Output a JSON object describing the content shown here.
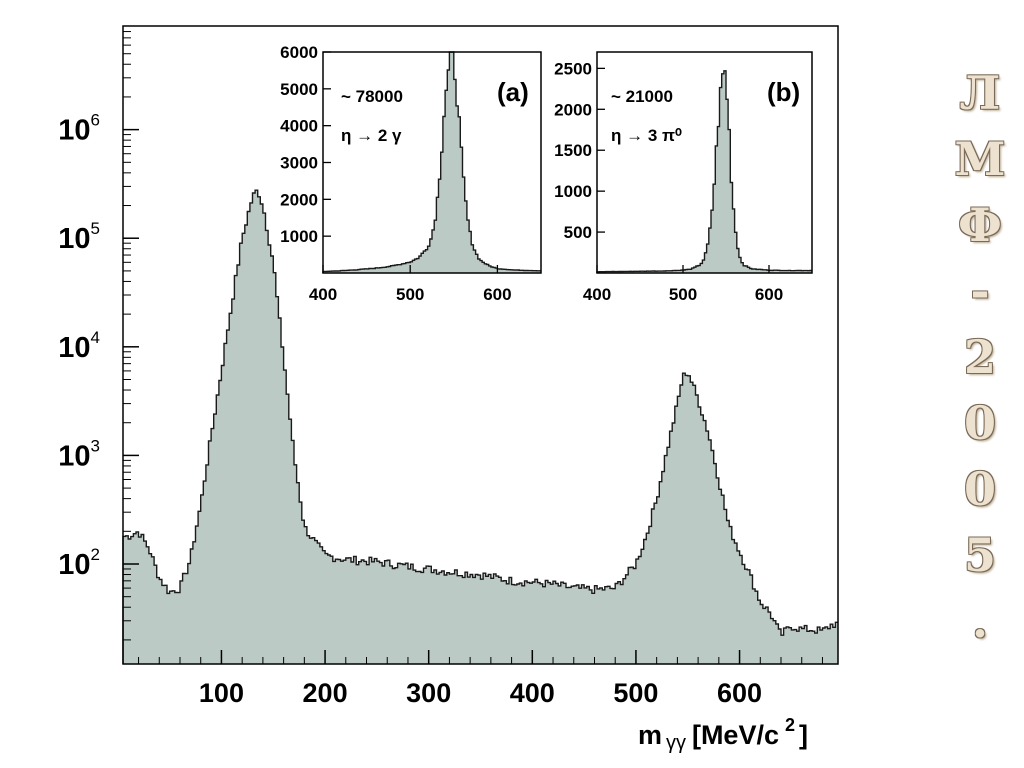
{
  "colors": {
    "fill": "#bccac6",
    "stroke": "#1a1a1a",
    "background": "#ffffff",
    "side_text": "#ede2cf"
  },
  "side_text": {
    "chars": [
      "Л",
      "М",
      "Ф",
      "-",
      "2",
      "0",
      "0",
      "5",
      "."
    ]
  },
  "chart_data": [
    {
      "type": "area",
      "title": "",
      "xlabel": "m γγ [MeV/c ²]",
      "ylabel": "",
      "y_scale": "log",
      "xlim": [
        5,
        695
      ],
      "ylim": [
        12,
        9000000
      ],
      "x_ticks": [
        100,
        200,
        300,
        400,
        500,
        600
      ],
      "y_ticks": [
        {
          "value": 100,
          "base": "10",
          "exp": "2"
        },
        {
          "value": 1000,
          "base": "10",
          "exp": "3"
        },
        {
          "value": 10000,
          "base": "10",
          "exp": "4"
        },
        {
          "value": 100000,
          "base": "10",
          "exp": "5"
        },
        {
          "value": 1000000,
          "base": "10",
          "exp": "6"
        }
      ],
      "grid": false,
      "series": [
        {
          "x": [
            10,
            20,
            30,
            40,
            50,
            60,
            70,
            80,
            90,
            100,
            110,
            120,
            130,
            135,
            140,
            150,
            160,
            170,
            180,
            190,
            200,
            220,
            250,
            280,
            300,
            320,
            350,
            380,
            400,
            420,
            440,
            460,
            480,
            500,
            510,
            520,
            530,
            540,
            545,
            550,
            560,
            570,
            580,
            590,
            600,
            610,
            620,
            630,
            640,
            650,
            660,
            670,
            680,
            690
          ],
          "values": [
            180,
            200,
            140,
            75,
            55,
            60,
            110,
            350,
            1500,
            6000,
            25000,
            100000,
            240000,
            280000,
            200000,
            60000,
            8000,
            1000,
            220,
            160,
            120,
            110,
            105,
            95,
            90,
            85,
            80,
            70,
            68,
            65,
            60,
            58,
            60,
            100,
            180,
            400,
            1100,
            3000,
            5200,
            6000,
            3300,
            1600,
            600,
            220,
            130,
            80,
            45,
            35,
            22,
            27,
            25,
            25,
            24,
            28
          ]
        }
      ]
    },
    {
      "type": "area",
      "title": "(a)",
      "annotations": [
        "~ 78000",
        "η → 2 γ"
      ],
      "xlim": [
        400,
        650
      ],
      "ylim": [
        0,
        6000
      ],
      "x_ticks": [
        400,
        500,
        600
      ],
      "y_ticks": [
        1000,
        2000,
        3000,
        4000,
        5000,
        6000
      ],
      "series": [
        {
          "x": [
            400,
            420,
            440,
            460,
            480,
            500,
            510,
            520,
            525,
            530,
            535,
            540,
            545,
            548,
            550,
            555,
            560,
            565,
            570,
            575,
            580,
            590,
            600,
            620,
            650
          ],
          "values": [
            40,
            60,
            90,
            130,
            190,
            300,
            420,
            700,
            1000,
            1700,
            3000,
            4800,
            5600,
            5950,
            5800,
            4500,
            2800,
            1600,
            900,
            550,
            350,
            200,
            120,
            80,
            60
          ]
        }
      ]
    },
    {
      "type": "area",
      "title": "(b)",
      "annotations": [
        "~ 21000",
        "η → 3 π⁰"
      ],
      "xlim": [
        400,
        650
      ],
      "ylim": [
        0,
        2700
      ],
      "x_ticks": [
        400,
        500,
        600
      ],
      "y_ticks": [
        500,
        1000,
        1500,
        2000,
        2500
      ],
      "series": [
        {
          "x": [
            400,
            440,
            480,
            500,
            510,
            520,
            525,
            530,
            535,
            540,
            545,
            548,
            550,
            553,
            556,
            560,
            565,
            570,
            580,
            600,
            620,
            650
          ],
          "values": [
            15,
            20,
            25,
            35,
            50,
            100,
            180,
            400,
            900,
            1700,
            2350,
            2500,
            2350,
            1900,
            1200,
            600,
            220,
            100,
            50,
            35,
            30,
            30
          ]
        }
      ]
    }
  ]
}
